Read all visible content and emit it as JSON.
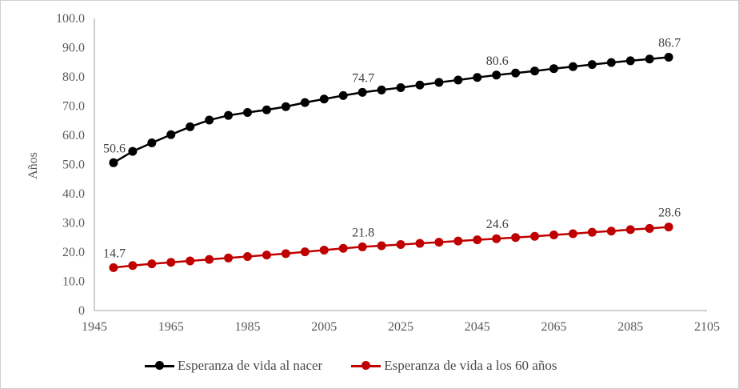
{
  "figure": {
    "background": "#ffffff",
    "border_color": "#cfcfcf",
    "axis_line_color": "#bfbfbf",
    "tick_label_color": "#595959",
    "data_label_color": "#3f3f3f"
  },
  "chart_data": {
    "type": "line",
    "title": "",
    "xlabel": "",
    "ylabel": "Años",
    "grid": false,
    "legend_position": "bottom",
    "x": [
      1950,
      1955,
      1960,
      1965,
      1970,
      1975,
      1980,
      1985,
      1990,
      1995,
      2000,
      2005,
      2010,
      2015,
      2020,
      2025,
      2030,
      2035,
      2040,
      2045,
      2050,
      2055,
      2060,
      2065,
      2070,
      2075,
      2080,
      2085,
      2090,
      2095
    ],
    "series": [
      {
        "name": "Esperanza de vida al nacer",
        "color": "#000000",
        "values": [
          50.6,
          54.5,
          57.4,
          60.2,
          62.9,
          65.2,
          66.8,
          67.8,
          68.7,
          69.8,
          71.2,
          72.4,
          73.6,
          74.7,
          75.5,
          76.3,
          77.2,
          78.1,
          78.9,
          79.8,
          80.6,
          81.3,
          82.0,
          82.8,
          83.5,
          84.2,
          84.9,
          85.5,
          86.1,
          86.7
        ]
      },
      {
        "name": "Esperanza de vida a los 60 años",
        "color": "#c00000",
        "values": [
          14.7,
          15.4,
          16.0,
          16.5,
          17.0,
          17.5,
          18.0,
          18.5,
          19.0,
          19.5,
          20.1,
          20.7,
          21.3,
          21.8,
          22.2,
          22.6,
          23.0,
          23.4,
          23.8,
          24.2,
          24.6,
          25.0,
          25.4,
          25.9,
          26.3,
          26.8,
          27.2,
          27.7,
          28.1,
          28.6
        ]
      }
    ],
    "x_axis": {
      "min": 1945,
      "max": 2105,
      "tick_step": 20,
      "ticks": [
        1945,
        1965,
        1985,
        2005,
        2025,
        2045,
        2065,
        2085,
        2105
      ]
    },
    "y_axis": {
      "min": 0,
      "max": 100,
      "tick_step": 10,
      "tick_labels": [
        "0",
        "10.0",
        "20.0",
        "30.0",
        "40.0",
        "50.0",
        "60.0",
        "70.0",
        "80.0",
        "90.0",
        "100.0"
      ]
    },
    "annotations": [
      {
        "series": 0,
        "year": 1950,
        "text": "50.6"
      },
      {
        "series": 0,
        "year": 2015,
        "text": "74.7"
      },
      {
        "series": 0,
        "year": 2050,
        "text": "80.6"
      },
      {
        "series": 0,
        "year": 2095,
        "text": "86.7"
      },
      {
        "series": 1,
        "year": 1950,
        "text": "14.7"
      },
      {
        "series": 1,
        "year": 2015,
        "text": "21.8"
      },
      {
        "series": 1,
        "year": 2050,
        "text": "24.6"
      },
      {
        "series": 1,
        "year": 2095,
        "text": "28.6"
      }
    ]
  },
  "legend": {
    "items": [
      {
        "label": "Esperanza de vida al nacer",
        "color": "#000000"
      },
      {
        "label": "Esperanza de vida a los 60 años",
        "color": "#c00000"
      }
    ]
  }
}
